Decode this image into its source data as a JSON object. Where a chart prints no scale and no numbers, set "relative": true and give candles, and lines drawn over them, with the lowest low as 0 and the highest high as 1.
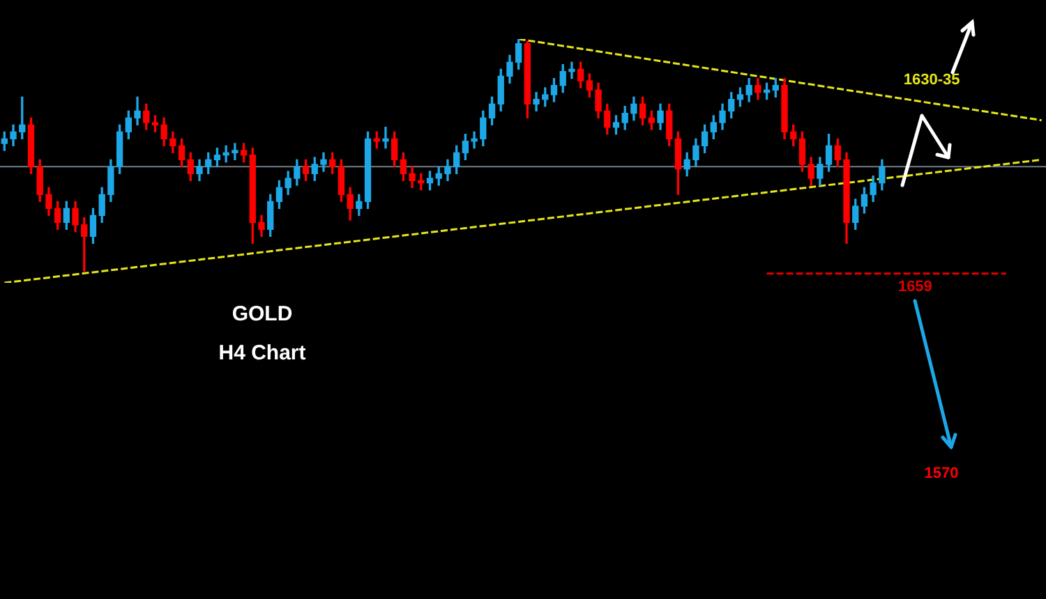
{
  "chart_data": {
    "type": "candlestick",
    "title": "GOLD",
    "subtitle": "H4 Chart",
    "relative": true,
    "legend": false,
    "categories": [
      null,
      null,
      null,
      null,
      null,
      null,
      null,
      null,
      null,
      null,
      null,
      null,
      null,
      null,
      null,
      null,
      null,
      null,
      null,
      null,
      null,
      null,
      null,
      null,
      null,
      null,
      null,
      null,
      null,
      null,
      null,
      null,
      null,
      null,
      null,
      null,
      null,
      null,
      null,
      null,
      null,
      null,
      null,
      null,
      null,
      null,
      null,
      null,
      null,
      null,
      null,
      null,
      null,
      null,
      null,
      null,
      null,
      null,
      null,
      null,
      null,
      null,
      null,
      null,
      null,
      null,
      null,
      null,
      null,
      null,
      null,
      null,
      null,
      null,
      null,
      null,
      null,
      null,
      null,
      null,
      null,
      null,
      null,
      null,
      null,
      null,
      null,
      null,
      null,
      null,
      null,
      null,
      null,
      null,
      null,
      null,
      null,
      null,
      null,
      null,
      null,
      null,
      null,
      null,
      null,
      null,
      null,
      null,
      null,
      null,
      null,
      null,
      null,
      null,
      null,
      null,
      null,
      null
    ],
    "ohlc": [
      [
        0.55,
        0.6,
        0.52,
        0.57
      ],
      [
        0.57,
        0.63,
        0.54,
        0.6
      ],
      [
        0.6,
        0.75,
        0.57,
        0.63
      ],
      [
        0.63,
        0.66,
        0.42,
        0.45
      ],
      [
        0.45,
        0.48,
        0.3,
        0.33
      ],
      [
        0.33,
        0.36,
        0.24,
        0.27
      ],
      [
        0.27,
        0.3,
        0.18,
        0.21
      ],
      [
        0.21,
        0.3,
        0.18,
        0.27
      ],
      [
        0.27,
        0.3,
        0.17,
        0.2
      ],
      [
        0.2,
        0.23,
        0.0,
        0.15
      ],
      [
        0.15,
        0.27,
        0.12,
        0.24
      ],
      [
        0.24,
        0.36,
        0.21,
        0.33
      ],
      [
        0.33,
        0.48,
        0.3,
        0.45
      ],
      [
        0.45,
        0.63,
        0.42,
        0.6
      ],
      [
        0.6,
        0.69,
        0.57,
        0.66
      ],
      [
        0.66,
        0.75,
        0.63,
        0.69
      ],
      [
        0.69,
        0.72,
        0.61,
        0.64
      ],
      [
        0.64,
        0.67,
        0.6,
        0.63
      ],
      [
        0.63,
        0.66,
        0.54,
        0.57
      ],
      [
        0.57,
        0.6,
        0.51,
        0.54
      ],
      [
        0.54,
        0.57,
        0.45,
        0.48
      ],
      [
        0.48,
        0.51,
        0.39,
        0.42
      ],
      [
        0.42,
        0.48,
        0.39,
        0.45
      ],
      [
        0.45,
        0.51,
        0.42,
        0.48
      ],
      [
        0.48,
        0.53,
        0.45,
        0.5
      ],
      [
        0.5,
        0.54,
        0.47,
        0.51
      ],
      [
        0.51,
        0.55,
        0.48,
        0.52
      ],
      [
        0.52,
        0.55,
        0.47,
        0.5
      ],
      [
        0.5,
        0.53,
        0.12,
        0.21
      ],
      [
        0.21,
        0.24,
        0.15,
        0.18
      ],
      [
        0.18,
        0.33,
        0.15,
        0.3
      ],
      [
        0.3,
        0.39,
        0.27,
        0.36
      ],
      [
        0.36,
        0.43,
        0.33,
        0.4
      ],
      [
        0.4,
        0.48,
        0.37,
        0.45
      ],
      [
        0.45,
        0.48,
        0.39,
        0.42
      ],
      [
        0.42,
        0.49,
        0.39,
        0.46
      ],
      [
        0.46,
        0.51,
        0.43,
        0.48
      ],
      [
        0.48,
        0.51,
        0.42,
        0.45
      ],
      [
        0.45,
        0.48,
        0.3,
        0.33
      ],
      [
        0.33,
        0.36,
        0.22,
        0.27
      ],
      [
        0.27,
        0.33,
        0.24,
        0.3
      ],
      [
        0.3,
        0.6,
        0.27,
        0.57
      ],
      [
        0.57,
        0.6,
        0.53,
        0.56
      ],
      [
        0.56,
        0.62,
        0.53,
        0.57
      ],
      [
        0.57,
        0.6,
        0.45,
        0.48
      ],
      [
        0.48,
        0.51,
        0.39,
        0.42
      ],
      [
        0.42,
        0.45,
        0.36,
        0.39
      ],
      [
        0.39,
        0.42,
        0.35,
        0.38
      ],
      [
        0.38,
        0.43,
        0.35,
        0.4
      ],
      [
        0.4,
        0.45,
        0.37,
        0.42
      ],
      [
        0.42,
        0.48,
        0.39,
        0.45
      ],
      [
        0.45,
        0.54,
        0.42,
        0.51
      ],
      [
        0.51,
        0.59,
        0.48,
        0.56
      ],
      [
        0.56,
        0.6,
        0.53,
        0.57
      ],
      [
        0.57,
        0.69,
        0.54,
        0.66
      ],
      [
        0.66,
        0.75,
        0.63,
        0.72
      ],
      [
        0.72,
        0.87,
        0.69,
        0.84
      ],
      [
        0.84,
        0.93,
        0.81,
        0.9
      ],
      [
        0.9,
        1.0,
        0.87,
        0.98
      ],
      [
        0.98,
        0.99,
        0.66,
        0.72
      ],
      [
        0.72,
        0.77,
        0.69,
        0.74
      ],
      [
        0.74,
        0.79,
        0.71,
        0.76
      ],
      [
        0.76,
        0.83,
        0.73,
        0.8
      ],
      [
        0.8,
        0.89,
        0.77,
        0.86
      ],
      [
        0.86,
        0.9,
        0.83,
        0.87
      ],
      [
        0.87,
        0.9,
        0.79,
        0.82
      ],
      [
        0.82,
        0.85,
        0.75,
        0.78
      ],
      [
        0.78,
        0.81,
        0.66,
        0.69
      ],
      [
        0.69,
        0.72,
        0.59,
        0.62
      ],
      [
        0.62,
        0.67,
        0.59,
        0.64
      ],
      [
        0.64,
        0.71,
        0.61,
        0.68
      ],
      [
        0.68,
        0.75,
        0.65,
        0.72
      ],
      [
        0.72,
        0.75,
        0.63,
        0.66
      ],
      [
        0.66,
        0.69,
        0.61,
        0.64
      ],
      [
        0.64,
        0.72,
        0.61,
        0.69
      ],
      [
        0.69,
        0.72,
        0.54,
        0.57
      ],
      [
        0.57,
        0.6,
        0.33,
        0.44
      ],
      [
        0.44,
        0.51,
        0.41,
        0.48
      ],
      [
        0.48,
        0.57,
        0.45,
        0.54
      ],
      [
        0.54,
        0.63,
        0.51,
        0.6
      ],
      [
        0.6,
        0.67,
        0.57,
        0.64
      ],
      [
        0.64,
        0.72,
        0.61,
        0.69
      ],
      [
        0.69,
        0.77,
        0.66,
        0.74
      ],
      [
        0.74,
        0.79,
        0.71,
        0.76
      ],
      [
        0.76,
        0.83,
        0.73,
        0.8
      ],
      [
        0.8,
        0.83,
        0.74,
        0.77
      ],
      [
        0.77,
        0.81,
        0.74,
        0.78
      ],
      [
        0.78,
        0.83,
        0.75,
        0.8
      ],
      [
        0.8,
        0.83,
        0.57,
        0.6
      ],
      [
        0.6,
        0.63,
        0.54,
        0.57
      ],
      [
        0.57,
        0.6,
        0.43,
        0.46
      ],
      [
        0.46,
        0.49,
        0.37,
        0.4
      ],
      [
        0.4,
        0.49,
        0.37,
        0.46
      ],
      [
        0.46,
        0.59,
        0.43,
        0.54
      ],
      [
        0.54,
        0.57,
        0.45,
        0.48
      ],
      [
        0.48,
        0.51,
        0.12,
        0.21
      ],
      [
        0.21,
        0.31,
        0.18,
        0.28
      ],
      [
        0.28,
        0.36,
        0.25,
        0.33
      ],
      [
        0.33,
        0.41,
        0.3,
        0.38
      ],
      [
        0.38,
        0.48,
        0.35,
        0.45
      ],
      null,
      null,
      null,
      null,
      null,
      null,
      null,
      null,
      null,
      null,
      null,
      null,
      null,
      null,
      null,
      null,
      null,
      null
    ],
    "colors": [
      "#1ea7e6",
      "#1ea7e6",
      "#1ea7e6",
      "#ff0000",
      "#ff0000",
      "#ff0000",
      "#ff0000",
      "#1ea7e6",
      "#ff0000",
      "#ff0000",
      "#1ea7e6",
      "#1ea7e6",
      "#1ea7e6",
      "#1ea7e6",
      "#1ea7e6",
      "#1ea7e6",
      "#ff0000",
      "#ff0000",
      "#ff0000",
      "#ff0000",
      "#ff0000",
      "#ff0000",
      "#1ea7e6",
      "#1ea7e6",
      "#1ea7e6",
      "#1ea7e6",
      "#1ea7e6",
      "#ff0000",
      "#ff0000",
      "#ff0000",
      "#1ea7e6",
      "#1ea7e6",
      "#1ea7e6",
      "#1ea7e6",
      "#ff0000",
      "#1ea7e6",
      "#1ea7e6",
      "#ff0000",
      "#ff0000",
      "#ff0000",
      "#1ea7e6",
      "#1ea7e6",
      "#ff0000",
      "#1ea7e6",
      "#ff0000",
      "#ff0000",
      "#ff0000",
      "#ff0000",
      "#1ea7e6",
      "#1ea7e6",
      "#1ea7e6",
      "#1ea7e6",
      "#1ea7e6",
      "#1ea7e6",
      "#1ea7e6",
      "#1ea7e6",
      "#1ea7e6",
      "#1ea7e6",
      "#1ea7e6",
      "#ff0000",
      "#1ea7e6",
      "#1ea7e6",
      "#1ea7e6",
      "#1ea7e6",
      "#1ea7e6",
      "#ff0000",
      "#ff0000",
      "#ff0000",
      "#ff0000",
      "#1ea7e6",
      "#1ea7e6",
      "#1ea7e6",
      "#ff0000",
      "#ff0000",
      "#1ea7e6",
      "#ff0000",
      "#ff0000",
      "#1ea7e6",
      "#1ea7e6",
      "#1ea7e6",
      "#1ea7e6",
      "#1ea7e6",
      "#1ea7e6",
      "#1ea7e6",
      "#1ea7e6",
      "#ff0000",
      "#1ea7e6",
      "#1ea7e6",
      "#ff0000",
      "#ff0000",
      "#ff0000",
      "#ff0000",
      "#1ea7e6",
      "#1ea7e6",
      "#ff0000",
      "#ff0000",
      "#1ea7e6",
      "#1ea7e6",
      "#1ea7e6",
      "#1ea7e6",
      null,
      null,
      null,
      null,
      null,
      null,
      null,
      null,
      null,
      null,
      null,
      null,
      null,
      null,
      null,
      null,
      null,
      null
    ],
    "series": [
      {
        "type": "line",
        "name": "1630-35",
        "color": "#e6e619",
        "line_style": "dashed",
        "values": [
          null,
          null,
          null,
          null,
          null,
          null,
          null,
          null,
          null,
          null,
          null,
          null,
          null,
          null,
          null,
          null,
          null,
          null,
          null,
          null,
          null,
          null,
          null,
          null,
          null,
          null,
          null,
          null,
          null,
          null,
          null,
          null,
          null,
          null,
          null,
          null,
          null,
          null,
          null,
          null,
          null,
          null,
          null,
          null,
          null,
          null,
          null,
          null,
          null,
          null,
          null,
          null,
          null,
          null,
          null,
          null,
          null,
          null,
          1.0,
          null,
          null,
          null,
          null,
          null,
          null,
          null,
          null,
          null,
          null,
          null,
          null,
          null,
          null,
          null,
          null,
          null,
          null,
          null,
          null,
          null,
          null,
          null,
          null,
          null,
          null,
          null,
          null,
          null,
          null,
          null,
          null,
          null,
          null,
          null,
          null,
          null,
          null,
          null,
          null,
          null,
          null,
          null,
          null,
          null,
          null,
          null,
          null,
          null,
          null,
          null,
          null,
          null,
          null,
          null,
          null,
          null,
          null,
          0.65
        ]
      },
      {
        "type": "line",
        "color": "#e6e619",
        "line_style": "dashed",
        "values": [
          -0.05,
          null,
          null,
          null,
          null,
          null,
          null,
          null,
          null,
          null,
          null,
          null,
          null,
          null,
          null,
          null,
          null,
          null,
          null,
          null,
          null,
          null,
          null,
          null,
          null,
          null,
          null,
          null,
          null,
          null,
          null,
          null,
          null,
          null,
          null,
          null,
          null,
          null,
          null,
          null,
          null,
          null,
          null,
          null,
          null,
          null,
          null,
          null,
          null,
          null,
          null,
          null,
          null,
          null,
          null,
          null,
          null,
          null,
          null,
          null,
          null,
          null,
          null,
          null,
          null,
          null,
          null,
          null,
          null,
          null,
          null,
          null,
          null,
          null,
          null,
          null,
          null,
          null,
          null,
          null,
          null,
          null,
          null,
          null,
          null,
          null,
          null,
          null,
          null,
          null,
          null,
          null,
          null,
          null,
          null,
          null,
          null,
          null,
          null,
          null,
          null,
          null,
          null,
          null,
          null,
          null,
          null,
          null,
          null,
          null,
          null,
          null,
          null,
          null,
          null,
          null,
          null,
          0.48
        ]
      },
      {
        "type": "line",
        "name": "1659",
        "color": "#e00000",
        "line_style": "dashed",
        "values": [
          null,
          null,
          null,
          null,
          null,
          null,
          null,
          null,
          null,
          null,
          null,
          null,
          null,
          null,
          null,
          null,
          null,
          null,
          null,
          null,
          null,
          null,
          null,
          null,
          null,
          null,
          null,
          null,
          null,
          null,
          null,
          null,
          null,
          null,
          null,
          null,
          null,
          null,
          null,
          null,
          null,
          null,
          null,
          null,
          null,
          null,
          null,
          null,
          null,
          null,
          null,
          null,
          null,
          null,
          null,
          null,
          null,
          null,
          null,
          null,
          null,
          null,
          null,
          null,
          null,
          null,
          null,
          null,
          null,
          null,
          null,
          null,
          null,
          null,
          null,
          null,
          null,
          null,
          null,
          null,
          null,
          null,
          null,
          null,
          null,
          null,
          -0.01,
          null,
          null,
          null,
          null,
          null,
          null,
          null,
          null,
          null,
          null,
          null,
          null,
          null,
          null,
          null,
          null,
          null,
          null,
          null,
          null,
          null,
          null,
          null,
          null,
          null,
          null,
          -0.01,
          null,
          null,
          null,
          null
        ]
      }
    ],
    "ref_lines": [
      {
        "axis": "y",
        "value": 0.45,
        "color": "#6f7c88"
      }
    ],
    "annotations": [
      "1570"
    ]
  }
}
